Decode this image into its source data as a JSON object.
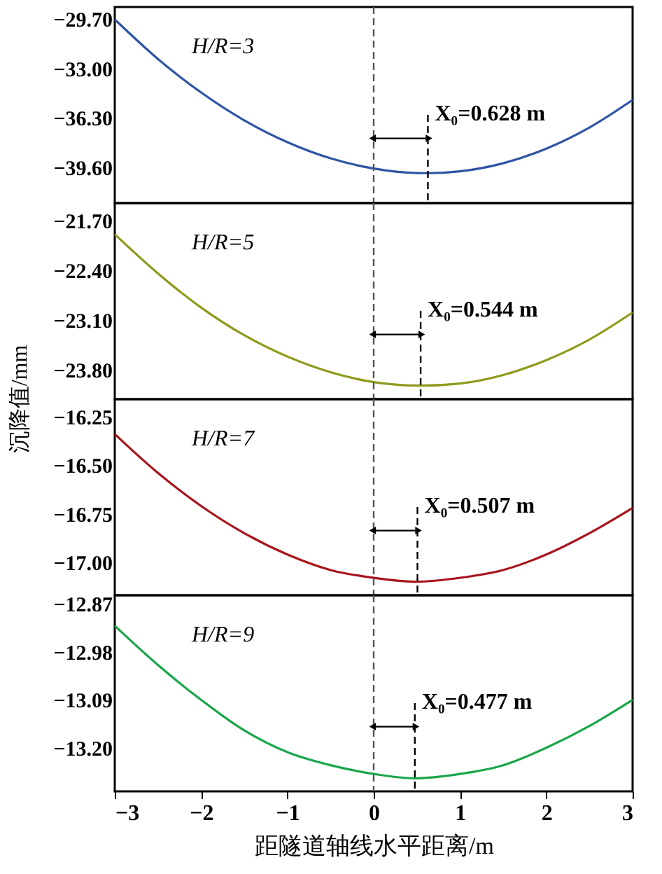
{
  "chart_data": [
    {
      "type": "line",
      "x": [
        -3,
        -2.5,
        -2,
        -1.5,
        -1,
        -0.5,
        0,
        0.5,
        0.628,
        1,
        1.5,
        2,
        2.5,
        3
      ],
      "series": [
        {
          "color": "#2e55a5",
          "values": [
            -29.73,
            -32.37,
            -34.61,
            -36.47,
            -37.93,
            -39.01,
            -39.69,
            -39.99,
            -40.0,
            -39.88,
            -39.34,
            -38.36,
            -36.95,
            -35.11
          ]
        }
      ],
      "xlim": [
        -3,
        3
      ],
      "ylim": [
        -42.0,
        -28.9
      ],
      "yticks": [
        {
          "value": -29.7,
          "label": "−29.70"
        },
        {
          "value": -33.0,
          "label": "−33.00"
        },
        {
          "value": -36.3,
          "label": "−36.30"
        },
        {
          "value": -39.6,
          "label": "−39.60"
        }
      ],
      "tick_labels": "y",
      "line_style": "solid",
      "marker": "none",
      "ref_lines": [
        {
          "axis": "x",
          "value": 0,
          "color": "#555555",
          "line_style": "dashed"
        },
        {
          "axis": "x",
          "value": 0.628,
          "label": "X₀=0.628 m",
          "color": "#000000",
          "line_style": "dashed"
        }
      ],
      "annotations": [
        "H/R=3"
      ]
    },
    {
      "type": "line",
      "x": [
        -3,
        -2.5,
        -2,
        -1.5,
        -1,
        -0.5,
        0,
        0.544,
        1,
        1.5,
        2,
        2.5,
        3
      ],
      "series": [
        {
          "color": "#8f9a1c",
          "values": [
            -21.89,
            -22.44,
            -22.92,
            -23.31,
            -23.61,
            -23.83,
            -23.97,
            -24.02,
            -23.99,
            -23.87,
            -23.66,
            -23.37,
            -22.99
          ]
        }
      ],
      "xlim": [
        -3,
        3
      ],
      "ylim": [
        -24.21,
        -21.45
      ],
      "yticks": [
        {
          "value": -21.7,
          "label": "−21.70"
        },
        {
          "value": -22.4,
          "label": "−22.40"
        },
        {
          "value": -23.1,
          "label": "−23.10"
        },
        {
          "value": -23.8,
          "label": "−23.80"
        }
      ],
      "tick_labels": "y",
      "line_style": "solid",
      "marker": "none",
      "ylabel": "沉降值/mm",
      "ref_lines": [
        {
          "axis": "x",
          "value": 0,
          "color": "#555555",
          "line_style": "dashed"
        },
        {
          "axis": "x",
          "value": 0.544,
          "label": "X₀=0.544 m",
          "color": "#000000",
          "line_style": "dashed"
        }
      ],
      "annotations": [
        "H/R=5"
      ]
    },
    {
      "type": "line",
      "x": [
        -3,
        -2.5,
        -2,
        -1.5,
        -1,
        -0.5,
        0,
        0.507,
        1,
        1.5,
        2,
        2.5,
        3
      ],
      "series": [
        {
          "color": "#a8151c",
          "values": [
            -16.34,
            -16.54,
            -16.71,
            -16.85,
            -16.96,
            -17.04,
            -17.08,
            -17.1,
            -17.08,
            -17.04,
            -16.96,
            -16.85,
            -16.72
          ]
        }
      ],
      "xlim": [
        -3,
        3
      ],
      "ylim": [
        -17.17,
        -16.16
      ],
      "yticks": [
        {
          "value": -16.25,
          "label": "−16.25"
        },
        {
          "value": -16.5,
          "label": "−16.50"
        },
        {
          "value": -16.75,
          "label": "−16.75"
        },
        {
          "value": -17.0,
          "label": "−17.00"
        }
      ],
      "tick_labels": "y",
      "line_style": "solid",
      "marker": "none",
      "ref_lines": [
        {
          "axis": "x",
          "value": 0,
          "color": "#555555",
          "line_style": "dashed"
        },
        {
          "axis": "x",
          "value": 0.507,
          "label": "X₀=0.507 m",
          "color": "#000000",
          "line_style": "dashed"
        }
      ],
      "annotations": [
        "H/R=7"
      ]
    },
    {
      "type": "line",
      "x": [
        -3,
        -2.5,
        -2,
        -1.5,
        -1,
        -0.5,
        0,
        0.477,
        1,
        1.5,
        2,
        2.5,
        3
      ],
      "series": [
        {
          "color": "#1aa64a",
          "values": [
            -12.92,
            -13.01,
            -13.09,
            -13.16,
            -13.21,
            -13.24,
            -13.26,
            -13.27,
            -13.26,
            -13.24,
            -13.2,
            -13.15,
            -13.09
          ]
        }
      ],
      "xlim": [
        -3,
        3
      ],
      "ylim": [
        -13.3,
        -12.85
      ],
      "xticks": [
        -3,
        -2,
        -1,
        0,
        1,
        2,
        3
      ],
      "yticks": [
        {
          "value": -12.87,
          "label": "−12.87"
        },
        {
          "value": -12.98,
          "label": "−12.98"
        },
        {
          "value": -13.09,
          "label": "−13.09"
        },
        {
          "value": -13.2,
          "label": "−13.20"
        }
      ],
      "xlabel": "距隧道轴线水平距离/m",
      "line_style": "solid",
      "marker": "none",
      "ref_lines": [
        {
          "axis": "x",
          "value": 0,
          "color": "#555555",
          "line_style": "dashed"
        },
        {
          "axis": "x",
          "value": 0.477,
          "label": "X₀=0.477 m",
          "color": "#000000",
          "line_style": "dashed"
        }
      ],
      "annotations": [
        "H/R=9"
      ]
    }
  ]
}
